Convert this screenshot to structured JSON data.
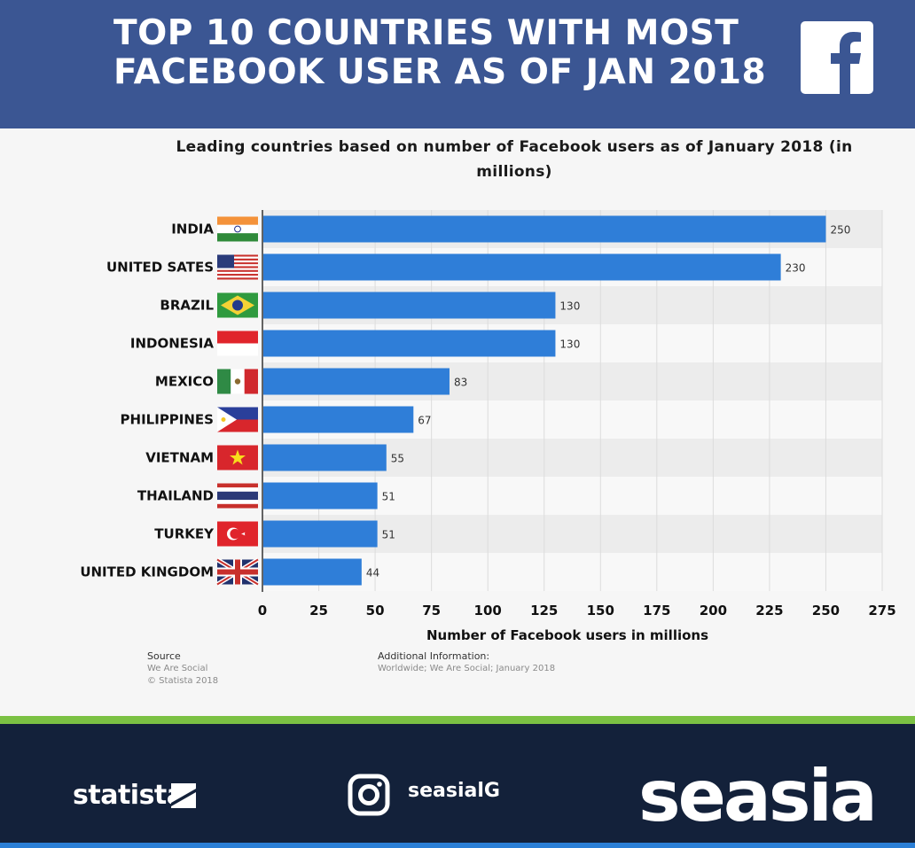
{
  "header": {
    "title_line1": "TOP 10 COUNTRIES WITH MOST",
    "title_line2": "FACEBOOK USER AS OF JAN 2018",
    "logo_icon": "facebook-f-icon",
    "bg_color": "#3b5693"
  },
  "chart_data": {
    "type": "bar",
    "orientation": "horizontal",
    "title": "Leading countries based on number of Facebook users as of January 2018 (in millions)",
    "categories": [
      "INDIA",
      "UNITED SATES",
      "BRAZIL",
      "INDONESIA",
      "MEXICO",
      "PHILIPPINES",
      "VIETNAM",
      "THAILAND",
      "TURKEY",
      "UNITED KINGDOM"
    ],
    "flag_icons": [
      "india-flag-icon",
      "usa-flag-icon",
      "brazil-flag-icon",
      "indonesia-flag-icon",
      "mexico-flag-icon",
      "philippines-flag-icon",
      "vietnam-flag-icon",
      "thailand-flag-icon",
      "turkey-flag-icon",
      "uk-flag-icon"
    ],
    "values": [
      250,
      230,
      130,
      130,
      83,
      67,
      55,
      51,
      51,
      44
    ],
    "value_labels": [
      "250",
      "230",
      "130",
      "130",
      "83",
      "67",
      "55",
      "51",
      "51",
      "44"
    ],
    "xlabel": "Number of Facebook users in millions",
    "ylabel": "",
    "xlim": [
      0,
      275
    ],
    "ticks": [
      0,
      25,
      50,
      75,
      100,
      125,
      150,
      175,
      200,
      225,
      250,
      275
    ],
    "grid": true,
    "bar_color": "#2f7ed8"
  },
  "source": {
    "heading": "Source",
    "line1": "We Are Social",
    "line2": "© Statista 2018"
  },
  "additional_info": {
    "heading": "Additional Information:",
    "line1": "Worldwide; We Are Social; January 2018"
  },
  "footer": {
    "statista_label": "statista",
    "statista_icon": "statista-mark-icon",
    "instagram_icon": "instagram-icon",
    "handle": "seasialG",
    "brand": "seasia",
    "bg_color": "#13213a",
    "accent_green": "#7bc143"
  }
}
